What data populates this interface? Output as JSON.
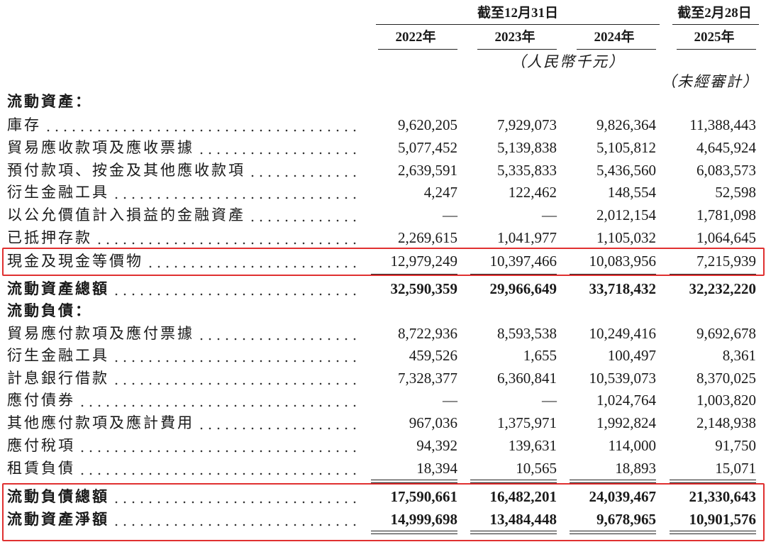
{
  "header": {
    "period_groups": [
      "截至12月31日",
      "截至2月28日"
    ],
    "years": [
      "2022年",
      "2023年",
      "2024年",
      "2025年"
    ],
    "unit": "（人民幣千元）",
    "unaudited": "（未經審計）"
  },
  "sections": [
    {
      "title": "流動資產：",
      "rows": [
        {
          "label": "庫存",
          "values": [
            "9,620,205",
            "7,929,073",
            "9,826,364",
            "11,388,443"
          ]
        },
        {
          "label": "貿易應收款項及應收票據",
          "values": [
            "5,077,452",
            "5,139,838",
            "5,105,812",
            "4,645,924"
          ]
        },
        {
          "label": "預付款項、按金及其他應收款項",
          "values": [
            "2,639,591",
            "5,335,833",
            "5,436,560",
            "6,083,573"
          ]
        },
        {
          "label": "衍生金融工具",
          "values": [
            "4,247",
            "122,462",
            "148,554",
            "52,598"
          ]
        },
        {
          "label": "以公允價值計入損益的金融資產",
          "values": [
            "—",
            "—",
            "2,012,154",
            "1,781,098"
          ]
        },
        {
          "label": "已抵押存款",
          "values": [
            "2,269,615",
            "1,041,977",
            "1,105,032",
            "1,064,645"
          ]
        },
        {
          "label": "現金及現金等價物",
          "values": [
            "12,979,249",
            "10,397,466",
            "10,083,956",
            "7,215,939"
          ]
        }
      ],
      "total": {
        "label": "流動資產總額",
        "values": [
          "32,590,359",
          "29,966,649",
          "33,718,432",
          "32,232,220"
        ]
      }
    },
    {
      "title": "流動負債：",
      "rows": [
        {
          "label": "貿易應付款項及應付票據",
          "values": [
            "8,722,936",
            "8,593,538",
            "10,249,416",
            "9,692,678"
          ]
        },
        {
          "label": "衍生金融工具",
          "values": [
            "459,526",
            "1,655",
            "100,497",
            "8,361"
          ]
        },
        {
          "label": "計息銀行借款",
          "values": [
            "7,328,377",
            "6,360,841",
            "10,539,073",
            "8,370,025"
          ]
        },
        {
          "label": "應付債券",
          "values": [
            "—",
            "—",
            "1,024,764",
            "1,003,820"
          ]
        },
        {
          "label": "其他應付款項及應計費用",
          "values": [
            "967,036",
            "1,375,971",
            "1,992,824",
            "2,148,938"
          ]
        },
        {
          "label": "應付稅項",
          "values": [
            "94,392",
            "139,631",
            "114,000",
            "91,750"
          ]
        },
        {
          "label": "租賃負債",
          "values": [
            "18,394",
            "10,565",
            "18,893",
            "15,071"
          ]
        }
      ],
      "total": {
        "label": "流動負債總額",
        "values": [
          "17,590,661",
          "16,482,201",
          "24,039,467",
          "21,330,643"
        ]
      }
    }
  ],
  "net": {
    "label": "流動資產淨額",
    "values": [
      "14,999,698",
      "13,484,448",
      "9,678,965",
      "10,901,576"
    ]
  }
}
